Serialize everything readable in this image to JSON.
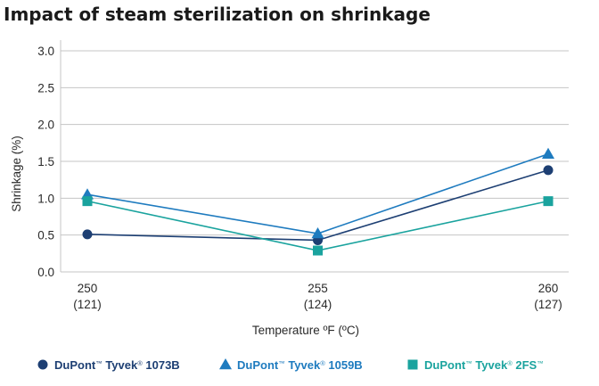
{
  "chart_data": {
    "type": "line",
    "title": "Impact of steam sterilization on shrinkage",
    "xlabel": "Temperature ºF (ºC)",
    "ylabel": "Shrinkage (%)",
    "ylim": [
      0.0,
      3.0
    ],
    "yticks": [
      "0.0",
      "0.5",
      "1.0",
      "1.5",
      "2.0",
      "2.5",
      "3.0"
    ],
    "grid": true,
    "legend_position": "bottom",
    "x": [
      250,
      255,
      260
    ],
    "categories": [
      {
        "top": "250",
        "bottom": "(121)"
      },
      {
        "top": "255",
        "bottom": "(124)"
      },
      {
        "top": "260",
        "bottom": "(127)"
      }
    ],
    "series": [
      {
        "name": "DuPont™ Tyvek® 1073B",
        "parts": [
          "DuPont",
          "™",
          " Tyvek",
          "®",
          " 1073B",
          ""
        ],
        "marker": "circle",
        "color": "#1d3f73",
        "values": [
          0.51,
          0.43,
          1.38
        ]
      },
      {
        "name": "DuPont™ Tyvek® 1059B",
        "parts": [
          "DuPont",
          "™",
          " Tyvek",
          "®",
          " 1059B",
          ""
        ],
        "marker": "triangle",
        "color": "#1e7bbf",
        "values": [
          1.05,
          0.52,
          1.6
        ]
      },
      {
        "name": "DuPont™ Tyvek® 2FS™",
        "parts": [
          "DuPont",
          "™",
          " Tyvek",
          "®",
          " 2FS",
          "™"
        ],
        "marker": "square",
        "color": "#1aa39e",
        "values": [
          0.96,
          0.29,
          0.96
        ]
      }
    ]
  }
}
